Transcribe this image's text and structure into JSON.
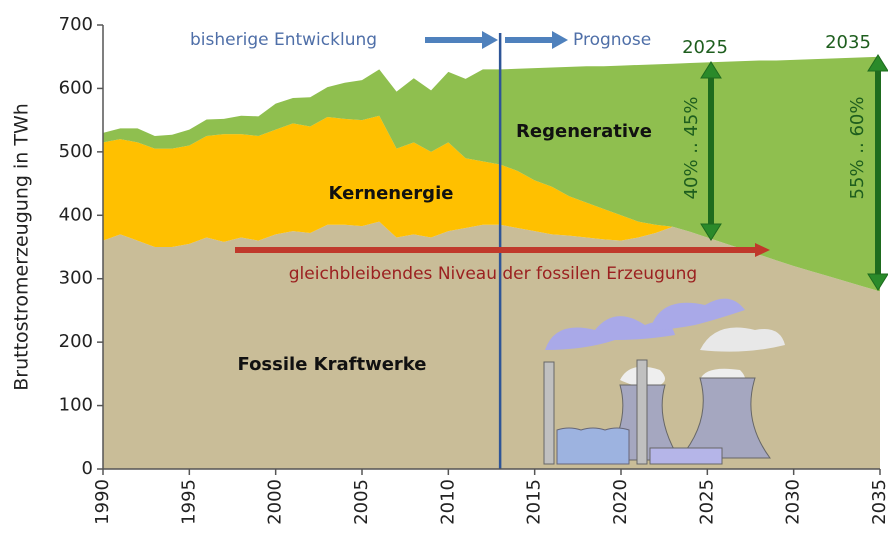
{
  "chart_data": {
    "type": "stacked_area",
    "y_label": "Bruttostromerzeugung in TWh",
    "x": [
      1990,
      1991,
      1992,
      1993,
      1994,
      1995,
      1996,
      1997,
      1998,
      1999,
      2000,
      2001,
      2002,
      2003,
      2004,
      2005,
      2006,
      2007,
      2008,
      2009,
      2010,
      2011,
      2012,
      2013,
      2014,
      2015,
      2016,
      2017,
      2018,
      2019,
      2020,
      2021,
      2022,
      2023,
      2024,
      2025,
      2026,
      2027,
      2028,
      2029,
      2030,
      2031,
      2032,
      2033,
      2034,
      2035
    ],
    "series": [
      {
        "name": "Fossile Kraftwerke",
        "color": "#c9bd98",
        "values": [
          360,
          370,
          360,
          350,
          350,
          355,
          365,
          358,
          365,
          360,
          370,
          375,
          372,
          385,
          385,
          383,
          390,
          365,
          370,
          365,
          375,
          380,
          385,
          385,
          380,
          375,
          370,
          368,
          365,
          362,
          360,
          365,
          372,
          382,
          374,
          365,
          356,
          347,
          338,
          329,
          320,
          312,
          304,
          296,
          288,
          280
        ]
      },
      {
        "name": "Kernenergie",
        "color": "#ffc000",
        "values": [
          155,
          150,
          155,
          155,
          155,
          155,
          160,
          170,
          163,
          165,
          165,
          170,
          168,
          170,
          167,
          167,
          167,
          140,
          145,
          135,
          140,
          110,
          100,
          95,
          90,
          80,
          75,
          62,
          55,
          48,
          40,
          25,
          13,
          0,
          0,
          0,
          0,
          0,
          0,
          0,
          0,
          0,
          0,
          0,
          0,
          0
        ]
      },
      {
        "name": "Regenerative",
        "color": "#8fbf4f",
        "values": [
          15,
          17,
          22,
          20,
          22,
          25,
          26,
          24,
          29,
          31,
          41,
          40,
          46,
          47,
          57,
          63,
          73,
          90,
          101,
          97,
          111,
          125,
          145,
          150,
          161,
          177,
          188,
          204,
          215,
          225,
          236,
          247,
          253,
          257,
          266,
          276,
          286,
          296,
          306,
          315,
          325,
          334,
          343,
          352,
          361,
          370
        ]
      }
    ],
    "xlim": [
      1990,
      2035
    ],
    "xticks": [
      1990,
      1995,
      2000,
      2005,
      2010,
      2015,
      2020,
      2025,
      2030,
      2035
    ],
    "ylim": [
      0,
      700
    ],
    "yticks": [
      0,
      100,
      200,
      300,
      400,
      500,
      600,
      700
    ],
    "divider_x": 2013,
    "annotations": {
      "history": "bisherige Entwicklung",
      "forecast": "Prognose",
      "fossil_level": "gleichbleibendes Niveau der fossilen Erzeugung",
      "year_a": "2025",
      "range_a": "40% .. 45%",
      "year_b": "2035",
      "range_b": "55% .. 60%"
    }
  }
}
